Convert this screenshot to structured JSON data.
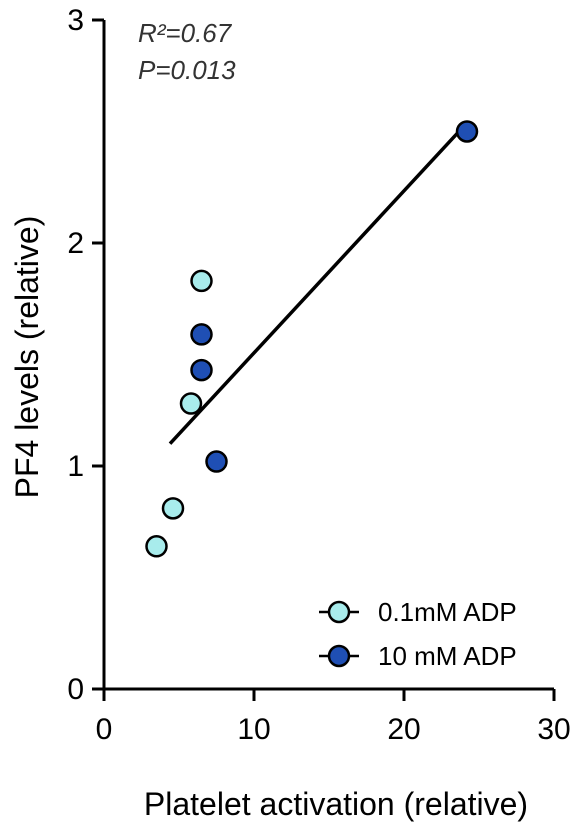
{
  "chart_data": {
    "type": "scatter",
    "xlabel": "Platelet activation (relative)",
    "ylabel": "PF4 levels (relative)",
    "xlim": [
      0,
      30
    ],
    "ylim": [
      0,
      3
    ],
    "x_ticks": [
      0,
      10,
      20,
      30
    ],
    "y_ticks": [
      0,
      1,
      2,
      3
    ],
    "annotations": {
      "r2": "R²=0.67",
      "p": "P=0.013"
    },
    "legend_position": "bottom-right",
    "series": [
      {
        "name": "0.1mM ADP",
        "color": "#a8ecec",
        "points": [
          {
            "x": 3.5,
            "y": 0.64
          },
          {
            "x": 4.6,
            "y": 0.81
          },
          {
            "x": 5.8,
            "y": 1.28
          },
          {
            "x": 6.5,
            "y": 1.83
          }
        ]
      },
      {
        "name": "10 mM ADP",
        "color": "#1f4fb4",
        "points": [
          {
            "x": 6.5,
            "y": 1.59
          },
          {
            "x": 6.5,
            "y": 1.43
          },
          {
            "x": 7.5,
            "y": 1.02
          },
          {
            "x": 24.2,
            "y": 2.5
          }
        ]
      }
    ],
    "regression_line": {
      "x": [
        4.4,
        23.8
      ],
      "y": [
        1.1,
        2.51
      ]
    }
  }
}
